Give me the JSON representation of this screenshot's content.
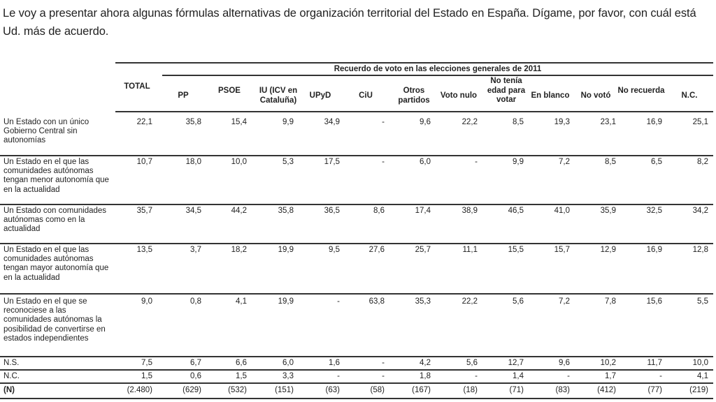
{
  "question": "Le voy a presentar ahora algunas fórmulas alternativas de organización territorial del Estado en España. Dígame, por favor, con cuál está Ud. más de acuerdo.",
  "table": {
    "group_header": "Recuerdo de voto en las elecciones generales de 2011",
    "columns": [
      "TOTAL",
      "PP",
      "PSOE",
      "IU (ICV en Cataluña)",
      "UPyD",
      "CiU",
      "Otros partidos",
      "Voto nulo",
      "No tenía edad para votar",
      "En blanco",
      "No votó",
      "No recuerda",
      "N.C."
    ],
    "rows": [
      {
        "label": "Un Estado con un único Gobierno Central sin autonomías",
        "values": [
          "22,1",
          "35,8",
          "15,4",
          "9,9",
          "34,9",
          "-",
          "9,6",
          "22,2",
          "8,5",
          "19,3",
          "23,1",
          "16,9",
          "25,1"
        ]
      },
      {
        "label": "Un Estado en el que las comunidades autónomas tengan menor autonomía que en la actualidad",
        "values": [
          "10,7",
          "18,0",
          "10,0",
          "5,3",
          "17,5",
          "-",
          "6,0",
          "-",
          "9,9",
          "7,2",
          "8,5",
          "6,5",
          "8,2"
        ]
      },
      {
        "label": "Un Estado con comunidades autónomas como en la actualidad",
        "values": [
          "35,7",
          "34,5",
          "44,2",
          "35,8",
          "36,5",
          "8,6",
          "17,4",
          "38,9",
          "46,5",
          "41,0",
          "35,9",
          "32,5",
          "34,2"
        ]
      },
      {
        "label": "Un Estado en el que las comunidades autónomas tengan mayor autonomía que en la actualidad",
        "values": [
          "13,5",
          "3,7",
          "18,2",
          "19,9",
          "9,5",
          "27,6",
          "25,7",
          "11,1",
          "15,5",
          "15,7",
          "12,9",
          "16,9",
          "12,8"
        ]
      },
      {
        "label": "Un Estado en el que se reconociese a las comunidades autónomas la posibilidad de convertirse en estados independientes",
        "values": [
          "9,0",
          "0,8",
          "4,1",
          "19,9",
          "-",
          "63,8",
          "35,3",
          "22,2",
          "5,6",
          "7,2",
          "7,8",
          "15,6",
          "5,5"
        ]
      },
      {
        "label": "N.S.",
        "values": [
          "7,5",
          "6,7",
          "6,6",
          "6,0",
          "1,6",
          "-",
          "4,2",
          "5,6",
          "12,7",
          "9,6",
          "10,2",
          "11,7",
          "10,0"
        ]
      },
      {
        "label": "N.C.",
        "values": [
          "1,5",
          "0,6",
          "1,5",
          "3,3",
          "-",
          "-",
          "1,8",
          "-",
          "1,4",
          "-",
          "1,7",
          "-",
          "4,1"
        ]
      },
      {
        "label": "(N)",
        "values": [
          "(2.480)",
          "(629)",
          "(532)",
          "(151)",
          "(63)",
          "(58)",
          "(167)",
          "(18)",
          "(71)",
          "(83)",
          "(412)",
          "(77)",
          "(219)"
        ]
      }
    ]
  }
}
